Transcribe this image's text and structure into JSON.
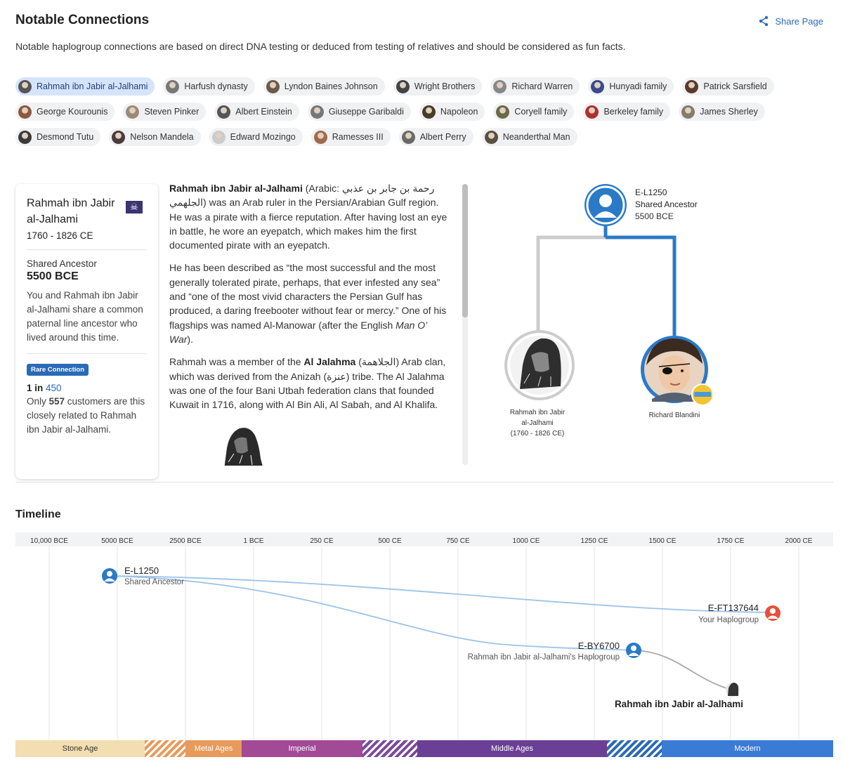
{
  "header": {
    "title": "Notable Connections",
    "share_label": "Share Page",
    "subtitle": "Notable haplogroup connections are based on direct DNA testing or deduced from testing of relatives and should be considered as fun facts."
  },
  "chips": [
    [
      {
        "label": "Rahmah ibn Jabir al-Jalhami",
        "active": true,
        "color": "#555555"
      },
      {
        "label": "Harfush dynasty",
        "color": "#777777"
      },
      {
        "label": "Lyndon Baines Johnson",
        "color": "#6b5b4b"
      },
      {
        "label": "Wright Brothers",
        "color": "#444444"
      },
      {
        "label": "Richard Warren",
        "color": "#888888"
      },
      {
        "label": "Hunyadi family",
        "color": "#3b4a8a"
      },
      {
        "label": "Patrick Sarsfield",
        "color": "#5a3a2a"
      }
    ],
    [
      {
        "label": "George Kourounis",
        "color": "#8a5a3a"
      },
      {
        "label": "Steven Pinker",
        "color": "#9a8a7a"
      },
      {
        "label": "Albert Einstein",
        "color": "#555555"
      },
      {
        "label": "Giuseppe Garibaldi",
        "color": "#777777"
      },
      {
        "label": "Napoleon",
        "color": "#4a3a2a"
      },
      {
        "label": "Coryell family",
        "color": "#6a6a4a"
      },
      {
        "label": "Berkeley family",
        "color": "#b03030"
      },
      {
        "label": "James Sherley",
        "color": "#8a7a6a"
      }
    ],
    [
      {
        "label": "Desmond Tutu",
        "color": "#3a3a3a"
      },
      {
        "label": "Nelson Mandela",
        "color": "#4a3a3a"
      },
      {
        "label": "Edward Mozingo",
        "color": "#cccccc"
      },
      {
        "label": "Ramesses III",
        "color": "#a06a4a"
      },
      {
        "label": "Albert Perry",
        "color": "#6a6a6a"
      },
      {
        "label": "Neanderthal Man",
        "color": "#5a5040"
      }
    ]
  ],
  "card": {
    "name": "Rahmah ibn Jabir al-Jalhami",
    "years": "1760 - 1826 CE",
    "flag_icon": "☠",
    "shared_label": "Shared Ancestor",
    "shared_value": "5500 BCE",
    "shared_desc": "You and Rahmah ibn Jabir al-Jalhami share a common paternal line ancestor who lived around this time.",
    "badge": "Rare Connection",
    "one_in_prefix": "1 in ",
    "one_in_value": "450",
    "only_prefix": "Only ",
    "only_count": "557",
    "only_suffix": " customers are this closely related to Rahmah ibn Jabir al-Jalhami."
  },
  "bio": {
    "p1_name": "Rahmah ibn Jabir al-Jalhami",
    "p1_arabic_prefix": " (Arabic: ",
    "p1_arabic": "رحمة بن جابر بن عذبي الجلهمي",
    "p1_rest": ") was an Arab ruler in the Persian/Arabian Gulf region. He was a pirate with a fierce reputation. After having lost an eye in battle, he wore an eyepatch, which makes him the first documented pirate with an eyepatch.",
    "p2_a": "He has been described as “the most successful and the most generally tolerated pirate, perhaps, that ever infested any sea” and “one of the most vivid characters the Persian Gulf has produced, a daring freebooter without fear or mercy.” One of his flagships was named Al-Manowar (after the English ",
    "p2_italic": "Man O’ War",
    "p2_end": ").",
    "p3_a": "Rahmah was a member of the ",
    "p3_bold": "Al Jalahma",
    "p3_b": " (الجلاهمة) Arab clan, which was derived from the Anizah (عنزة) tribe. The Al Jalahma was one of the four Bani Utbah federation clans that founded Kuwait in 1716, along with Al Bin Ali, Al Sabah, and Al Khalifa."
  },
  "tree": {
    "ancestor_id": "E-L1250",
    "ancestor_label": "Shared Ancestor",
    "ancestor_date": "5500 BCE",
    "left_name_1": "Rahmah ibn Jabir",
    "left_name_2": "al-Jalhami",
    "left_name_3": "(1760 - 1826 CE)",
    "right_name": "Richard Blandini",
    "left_line_color": "#cccccc",
    "right_line_color": "#2a7ac7"
  },
  "timeline": {
    "title": "Timeline",
    "ticks": [
      "10,000 BCE",
      "5000 BCE",
      "2500 BCE",
      "1 BCE",
      "250 CE",
      "500 CE",
      "750 CE",
      "1000 CE",
      "1250 CE",
      "1500 CE",
      "1750 CE",
      "2000 CE"
    ],
    "ancestor_id": "E-L1250",
    "ancestor_label": "Shared Ancestor",
    "your_id": "E-FT137644",
    "your_label": "Your Haplogroup",
    "their_id": "E-BY6700",
    "their_label": "Rahmah ibn Jabir al-Jalhami's Haplogroup",
    "person_label": "Rahmah ibn Jabir al-Jalhami",
    "eras": [
      {
        "label": "Stone Age",
        "color": "#f3deb2",
        "text": "#333333",
        "w": 184
      },
      {
        "label": "",
        "color": "#e89a5c",
        "striped": true,
        "w": 58
      },
      {
        "label": "Metal Ages",
        "color": "#e89a5c",
        "text": "#ffffff",
        "w": 80
      },
      {
        "label": "Imperial",
        "color": "#a24a96",
        "text": "#ffffff",
        "w": 172
      },
      {
        "label": "",
        "color": "#7a4a9a",
        "striped": true,
        "w": 78
      },
      {
        "label": "Middle Ages",
        "color": "#6b3f96",
        "text": "#ffffff",
        "w": 270
      },
      {
        "label": "",
        "color": "#2a6ab7",
        "striped": true,
        "w": 78
      },
      {
        "label": "Modern",
        "color": "#3a7bd5",
        "text": "#ffffff",
        "w": 244
      }
    ]
  }
}
